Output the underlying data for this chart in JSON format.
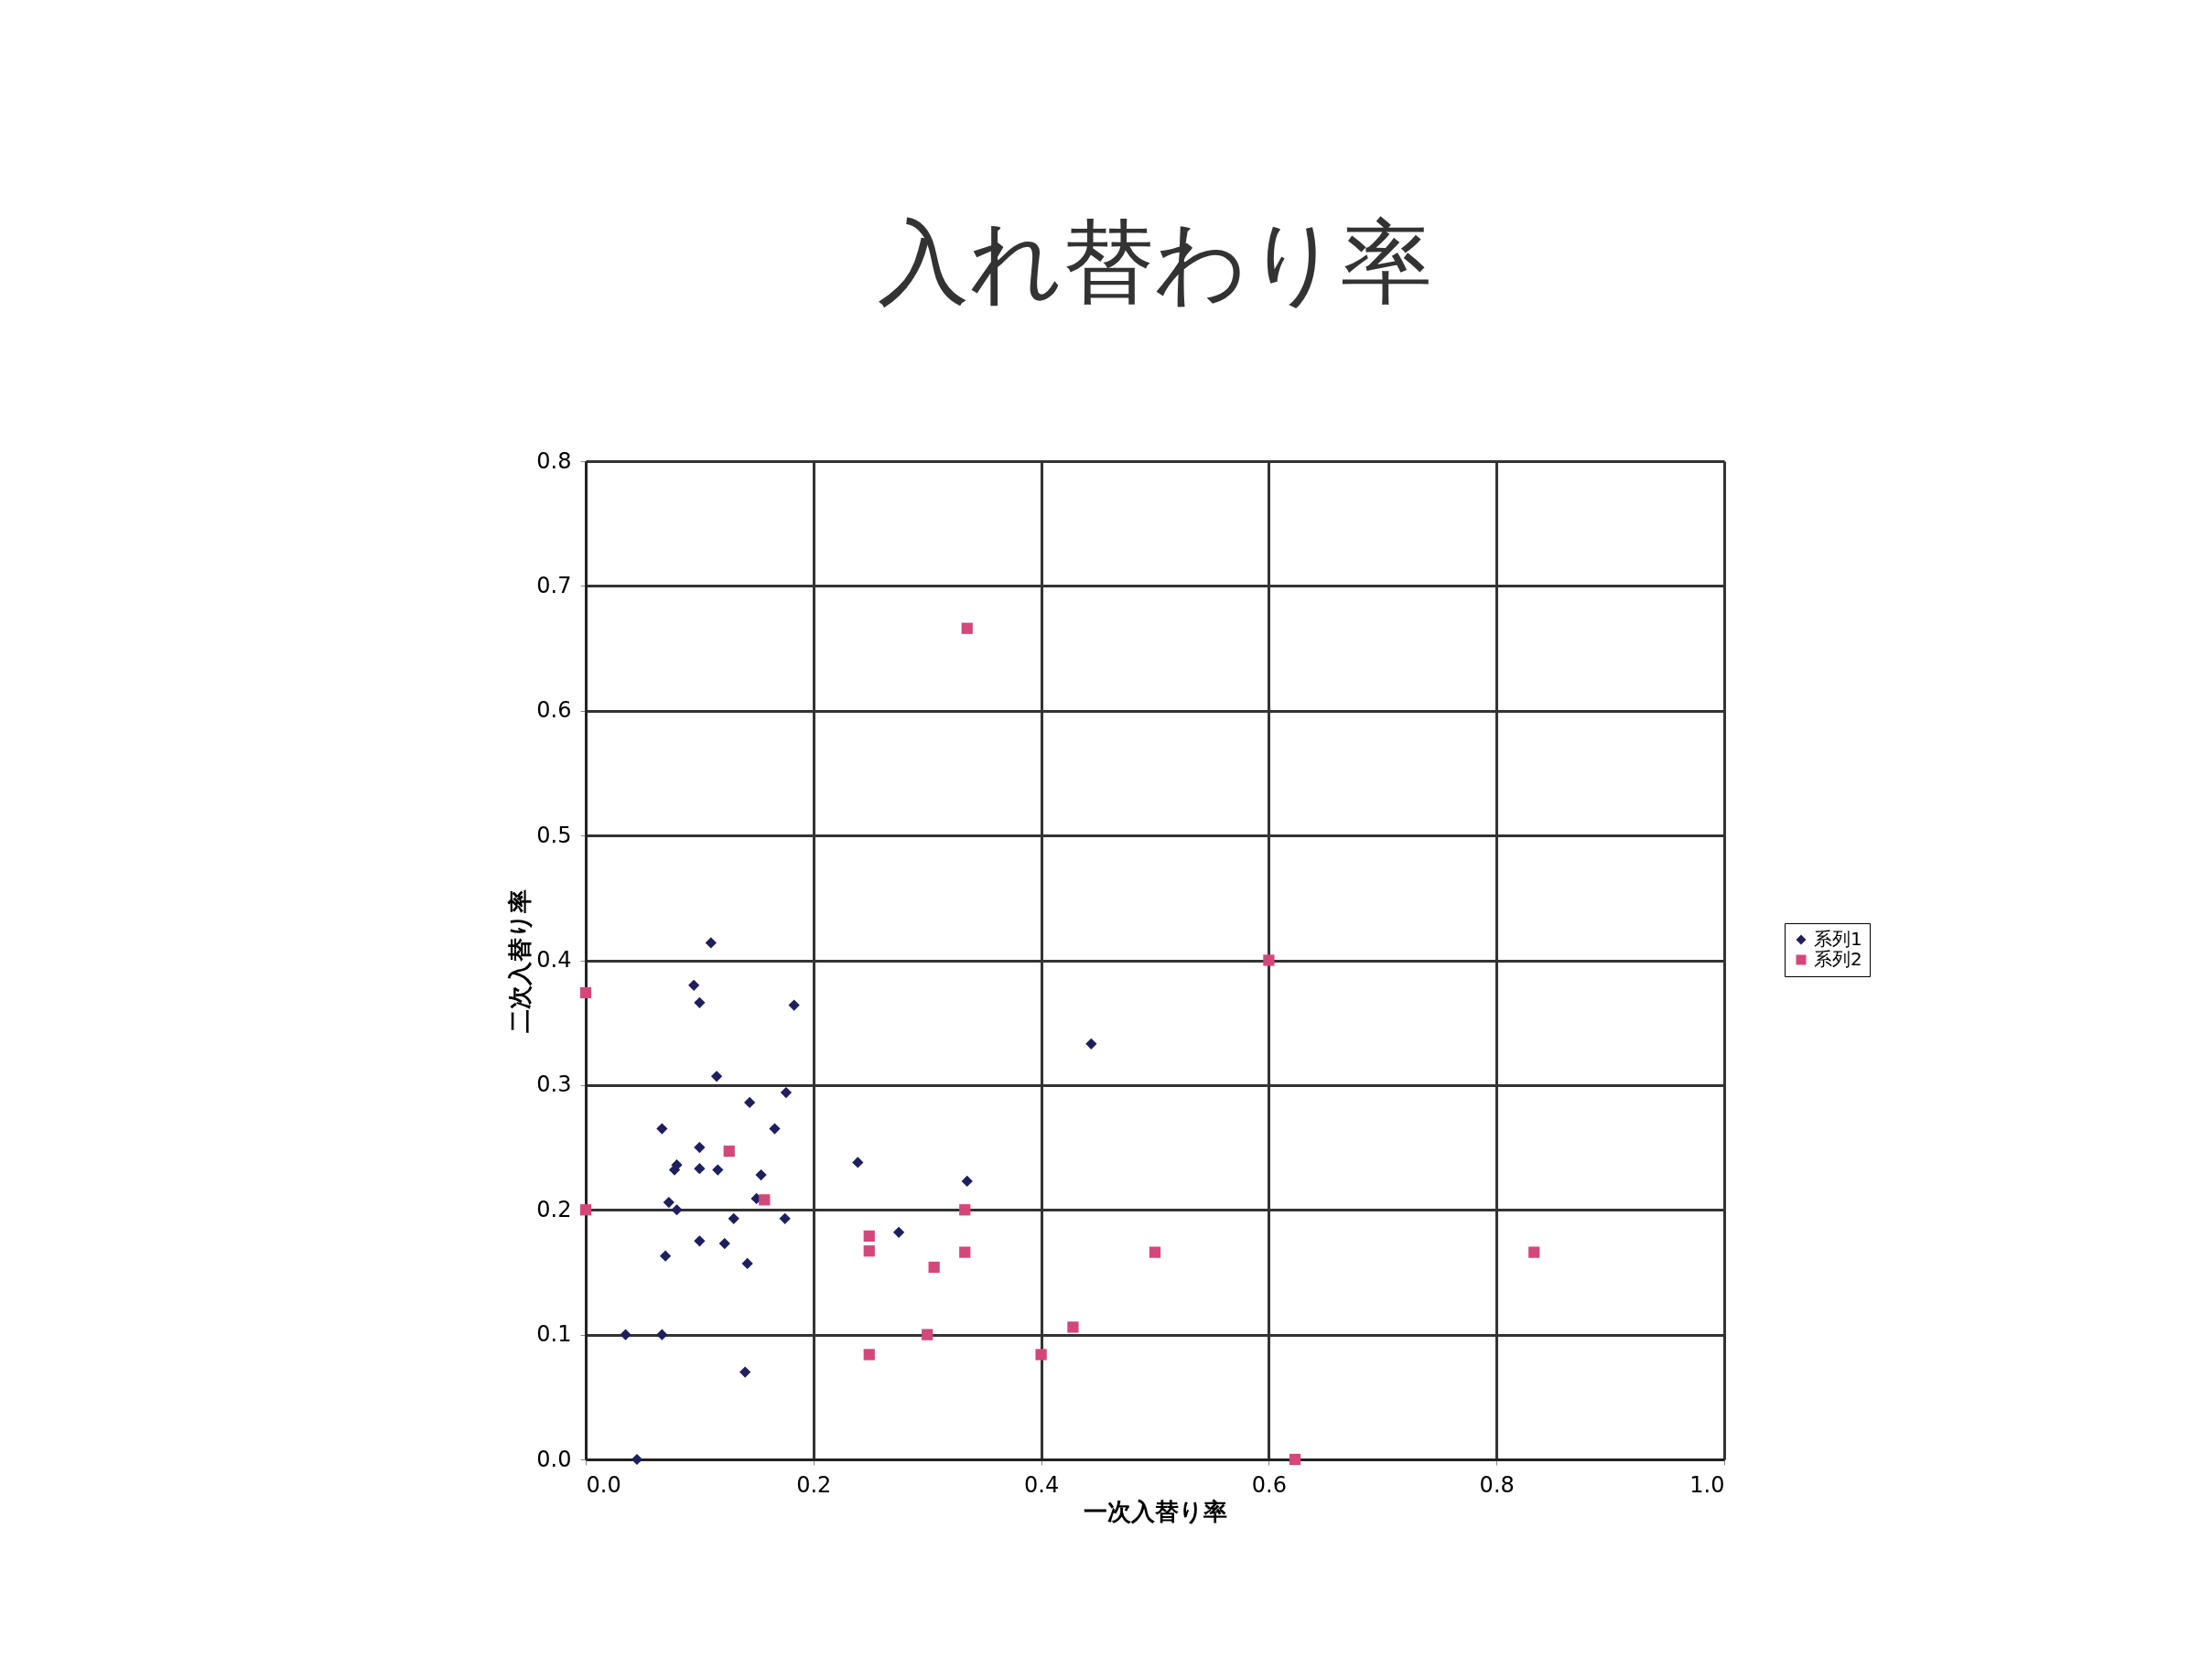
{
  "chart_data": {
    "type": "scatter",
    "title": "入れ替わり率",
    "xlabel": "一次入替り率",
    "ylabel": "二次入替り率",
    "xlim": [
      0,
      1
    ],
    "ylim": [
      0,
      0.8
    ],
    "xticks": [
      {
        "value": 0,
        "label": "0.0"
      },
      0.2,
      0.4,
      0.6,
      0.8,
      {
        "value": 1,
        "label": "1.0"
      }
    ],
    "yticks": [
      {
        "value": 0,
        "label": "0.0"
      },
      0.1,
      0.2,
      0.3,
      0.4,
      0.5,
      0.6,
      0.7,
      0.8
    ],
    "grid": true,
    "legend": "right",
    "series": [
      {
        "name": "系列1",
        "color": "#1f1f5e",
        "marker": "diamond",
        "x": [
          0.035,
          0.067,
          0.045,
          0.067,
          0.07,
          0.073,
          0.08,
          0.078,
          0.08,
          0.1,
          0.1,
          0.1,
          0.116,
          0.115,
          0.122,
          0.1,
          0.095,
          0.11,
          0.13,
          0.142,
          0.14,
          0.144,
          0.15,
          0.154,
          0.166,
          0.176,
          0.175,
          0.183,
          0.239,
          0.275,
          0.335,
          0.444
        ],
        "values": [
          0.1,
          0.1,
          0.0,
          0.265,
          0.163,
          0.206,
          0.2,
          0.232,
          0.236,
          0.233,
          0.25,
          0.175,
          0.232,
          0.307,
          0.173,
          0.366,
          0.38,
          0.414,
          0.193,
          0.157,
          0.07,
          0.286,
          0.209,
          0.228,
          0.265,
          0.294,
          0.193,
          0.364,
          0.238,
          0.182,
          0.223,
          0.333
        ]
      },
      {
        "name": "系列2",
        "color": "#d4477a",
        "marker": "square",
        "x": [
          0.0,
          0.0,
          0.126,
          0.157,
          0.249,
          0.249,
          0.249,
          0.306,
          0.3,
          0.335,
          0.333,
          0.333,
          0.4,
          0.428,
          0.5,
          0.6,
          0.623,
          0.833
        ],
        "values": [
          0.374,
          0.2,
          0.247,
          0.208,
          0.179,
          0.167,
          0.084,
          0.154,
          0.1,
          0.666,
          0.2,
          0.166,
          0.084,
          0.106,
          0.166,
          0.4,
          0.0,
          0.166
        ]
      }
    ]
  }
}
